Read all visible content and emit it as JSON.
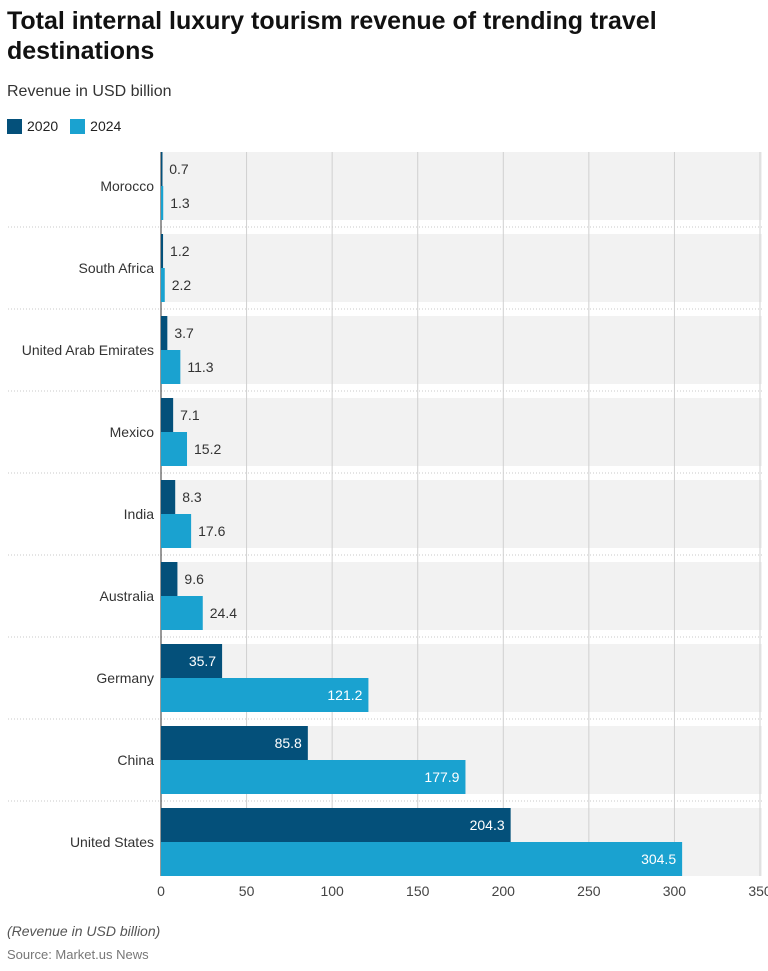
{
  "chart_data": {
    "type": "bar",
    "orientation": "horizontal",
    "title": "Total internal luxury tourism revenue of trending travel destinations",
    "subtitle": "Revenue in USD billion",
    "categories": [
      "Morocco",
      "South Africa",
      "United Arab Emirates",
      "Mexico",
      "India",
      "Australia",
      "Germany",
      "China",
      "United States"
    ],
    "series": [
      {
        "name": "2020",
        "color": "#04507a",
        "values": [
          0.7,
          1.2,
          3.7,
          7.1,
          8.3,
          9.6,
          35.7,
          85.8,
          204.3
        ]
      },
      {
        "name": "2024",
        "color": "#1aa2d0",
        "values": [
          1.3,
          2.2,
          11.3,
          15.2,
          17.6,
          24.4,
          121.2,
          177.9,
          304.5
        ]
      }
    ],
    "xlim": [
      0,
      350
    ],
    "xticks": [
      0,
      50,
      100,
      150,
      200,
      250,
      300,
      350
    ],
    "grid": true,
    "legend": "top-left",
    "note": "(Revenue in USD billion)",
    "source": "Source: Market.us News"
  }
}
